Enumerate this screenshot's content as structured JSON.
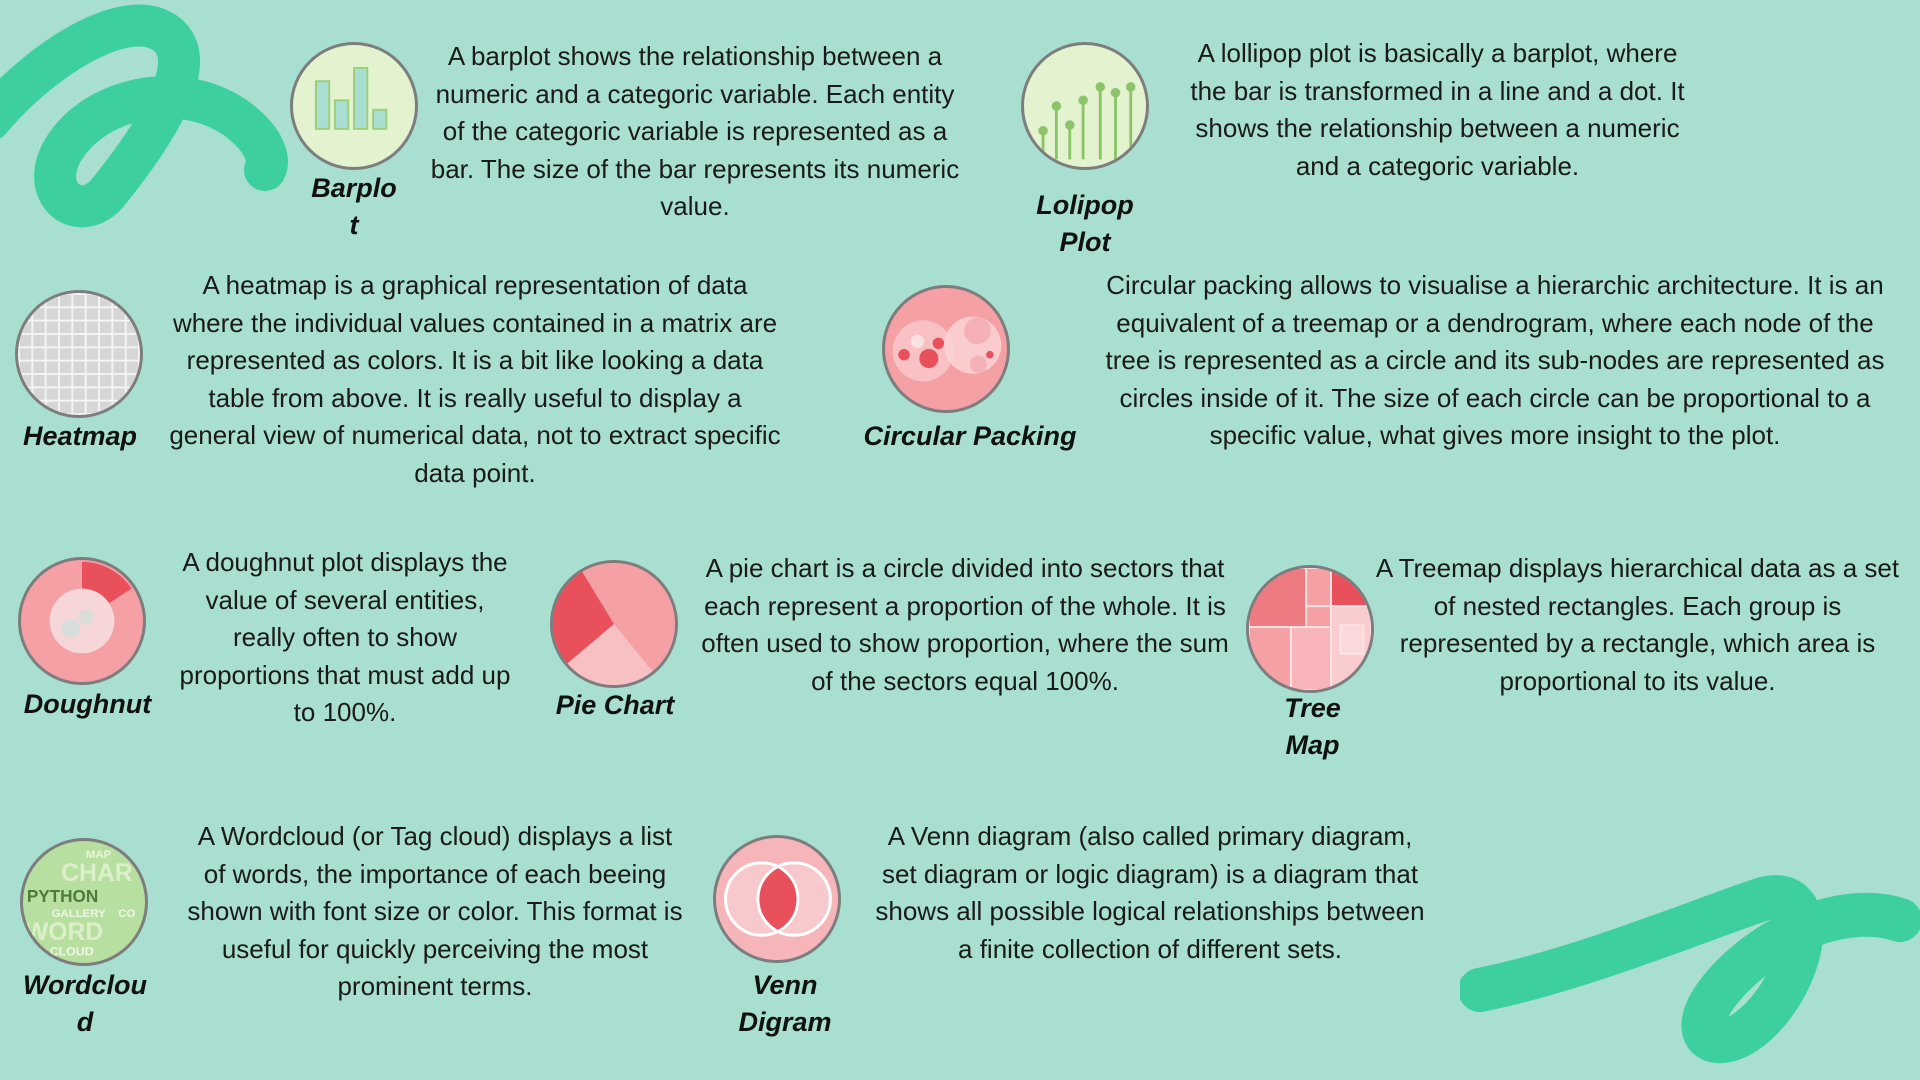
{
  "colors": {
    "background": "#a8dfd0",
    "accent_green": "#3dcfa0",
    "chart_red": "#e8505b",
    "chart_pink": "#f4a0a4"
  },
  "items": {
    "barplot": {
      "name": "Barplo\nt",
      "description": "A barplot shows the relationship between a numeric and a categoric variable. Each entity of the categoric variable is represented as a bar. The size of the bar represents its numeric value."
    },
    "lollipop": {
      "name": "Lolipop\nPlot",
      "description": "A lollipop plot is basically a barplot, where the bar is transformed in a line and a dot. It shows the relationship between a numeric and a categoric variable."
    },
    "heatmap": {
      "name": "Heatmap",
      "description": "A heatmap is a graphical representation of data where the individual values contained in a matrix are represented as colors. It is a bit like looking a data table from above. It is really useful to display a general view of numerical data, not to extract specific data point."
    },
    "circular_packing": {
      "name": "Circular Packing",
      "description": "Circular packing allows to visualise a hierarchic architecture. It is an equivalent of a treemap or a dendrogram, where each node of the tree is represented as a circle and its sub-nodes are represented as circles inside of it. The size of each circle can be proportional to a specific value, what gives more insight to the plot."
    },
    "doughnut": {
      "name": "Doughnut",
      "description": "A doughnut plot displays the value of several entities, really often to show proportions that must add up to 100%."
    },
    "pie_chart": {
      "name": "Pie Chart",
      "description": "A pie chart is a circle divided into sectors that each represent a proportion of the whole. It is often used to show proportion, where the sum of the sectors equal 100%."
    },
    "treemap": {
      "name": "Tree\nMap",
      "description": "A Treemap displays hierarchical data as a set of nested rectangles. Each group is represented by a rectangle, which area is proportional to its value."
    },
    "wordcloud": {
      "name": "Wordclou\nd",
      "description": "A Wordcloud (or Tag cloud) displays a list of words, the importance of each beeing shown with font size or color. This format is useful for quickly perceiving the most prominent terms.",
      "icon_words": [
        "MAP",
        "CHAR",
        "PYTHON",
        "GALLERY",
        "CO",
        "WORD",
        "CLOUD"
      ]
    },
    "venn": {
      "name": "Venn\nDigram",
      "description": "A Venn diagram (also called primary diagram, set diagram or logic diagram) is a diagram that shows all possible logical relationships between a finite collection of different sets."
    }
  }
}
